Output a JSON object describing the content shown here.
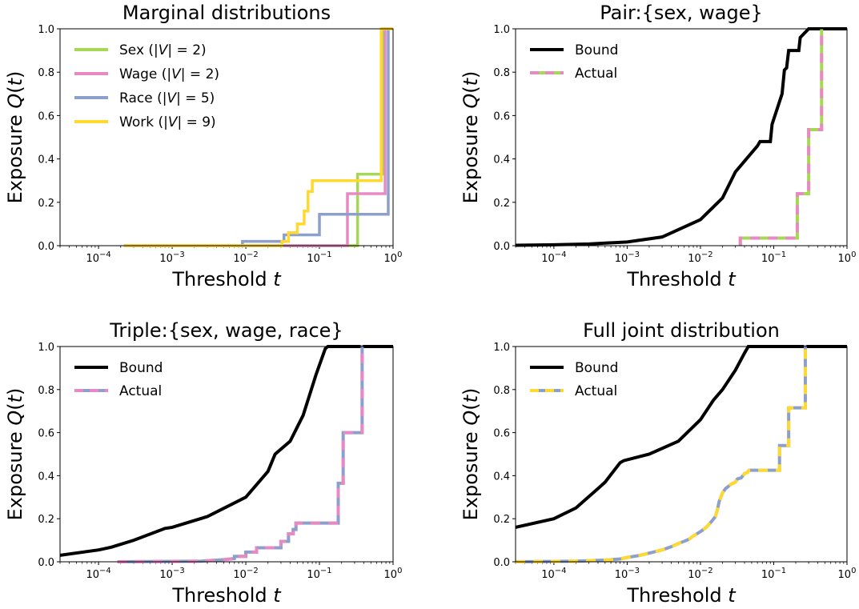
{
  "chart_data": [
    {
      "type": "line",
      "title": "Marginal distributions",
      "xlabel": "Threshold t",
      "ylabel": "Exposure Q(t)",
      "xscale": "log",
      "xlim": [
        3e-05,
        1
      ],
      "ylim": [
        0,
        1
      ],
      "xticks": [
        "10-4",
        "10-3",
        "10-2",
        "10-1",
        "100"
      ],
      "yticks": [
        "0.0",
        "0.2",
        "0.4",
        "0.6",
        "0.8",
        "1.0"
      ],
      "legend_position": "top-left",
      "series": [
        {
          "name": "Sex (|V| = 2)",
          "color": "#a6d854",
          "style": "step",
          "x": [
            0.00022,
            0.33,
            0.33,
            0.72,
            0.72,
            1.0
          ],
          "y": [
            0,
            0,
            0.33,
            0.33,
            1.0,
            1.0
          ]
        },
        {
          "name": "Wage (|V| = 2)",
          "color": "#e78ac3",
          "style": "step",
          "x": [
            0.00022,
            0.24,
            0.24,
            0.78,
            0.78,
            1.0
          ],
          "y": [
            0,
            0,
            0.24,
            0.24,
            1.0,
            1.0
          ]
        },
        {
          "name": "Race (|V| = 5)",
          "color": "#8da0cb",
          "style": "step",
          "x": [
            0.009,
            0.009,
            0.033,
            0.033,
            0.1,
            0.1,
            0.86,
            0.86
          ],
          "y": [
            0,
            0.02,
            0.02,
            0.05,
            0.05,
            0.145,
            0.145,
            1.0
          ]
        },
        {
          "name": "Work (|V| = 9)",
          "color": "#ffd92f",
          "style": "step",
          "x": [
            0.00022,
            0.031,
            0.031,
            0.038,
            0.038,
            0.05,
            0.05,
            0.062,
            0.062,
            0.07,
            0.07,
            0.08,
            0.08,
            0.69,
            0.69,
            1.0
          ],
          "y": [
            0,
            0,
            0.02,
            0.02,
            0.06,
            0.06,
            0.1,
            0.1,
            0.16,
            0.16,
            0.25,
            0.25,
            0.3,
            0.3,
            1.0,
            1.0
          ]
        }
      ]
    },
    {
      "type": "line",
      "title": "Pair:{sex, wage}",
      "xlabel": "Threshold t",
      "ylabel": "Exposure Q(t)",
      "xscale": "log",
      "xlim": [
        3e-05,
        1
      ],
      "ylim": [
        0,
        1
      ],
      "xticks": [
        "10-4",
        "10-3",
        "10-2",
        "10-1",
        "100"
      ],
      "yticks": [
        "0.0",
        "0.2",
        "0.4",
        "0.6",
        "0.8",
        "1.0"
      ],
      "legend_position": "top-left",
      "series": [
        {
          "name": "Bound",
          "color": "#000000",
          "style": "solid",
          "x": [
            3e-05,
            0.0001,
            0.0003,
            0.001,
            0.003,
            0.01,
            0.02,
            0.03,
            0.04,
            0.06,
            0.065,
            0.09,
            0.095,
            0.13,
            0.14,
            0.15,
            0.16,
            0.17,
            0.22,
            0.23,
            0.3,
            1.0
          ],
          "y": [
            0.002,
            0.004,
            0.008,
            0.017,
            0.04,
            0.12,
            0.22,
            0.34,
            0.39,
            0.46,
            0.48,
            0.48,
            0.56,
            0.7,
            0.81,
            0.82,
            0.9,
            0.9,
            0.9,
            0.96,
            1.0,
            1.0
          ]
        },
        {
          "name": "Actual",
          "color": "#e78ac3",
          "color2": "#a6d854",
          "style": "dashed-two-color",
          "x": [
            0.035,
            0.035,
            0.21,
            0.21,
            0.3,
            0.3,
            0.45,
            0.45
          ],
          "y": [
            0,
            0.035,
            0.035,
            0.24,
            0.24,
            0.535,
            0.535,
            1.0
          ]
        }
      ]
    },
    {
      "type": "line",
      "title": "Triple:{sex, wage, race}",
      "xlabel": "Threshold t",
      "ylabel": "Exposure Q(t)",
      "xscale": "log",
      "xlim": [
        3e-05,
        1
      ],
      "ylim": [
        0,
        1
      ],
      "xticks": [
        "10-4",
        "10-3",
        "10-2",
        "10-1",
        "100"
      ],
      "yticks": [
        "0.0",
        "0.2",
        "0.4",
        "0.6",
        "0.8",
        "1.0"
      ],
      "legend_position": "top-left",
      "series": [
        {
          "name": "Bound",
          "color": "#000000",
          "style": "solid",
          "x": [
            3e-05,
            0.0001,
            0.00015,
            0.0003,
            0.0008,
            0.001,
            0.003,
            0.01,
            0.02,
            0.025,
            0.04,
            0.06,
            0.09,
            0.12,
            0.13,
            1.0
          ],
          "y": [
            0.03,
            0.055,
            0.068,
            0.1,
            0.155,
            0.16,
            0.21,
            0.3,
            0.42,
            0.5,
            0.56,
            0.68,
            0.87,
            0.99,
            1.0,
            1.0
          ]
        },
        {
          "name": "Actual",
          "color": "#e78ac3",
          "color2": "#8da0cb",
          "style": "dashed-two-color",
          "x": [
            0.00018,
            0.0025,
            0.005,
            0.007,
            0.007,
            0.01,
            0.01,
            0.014,
            0.014,
            0.03,
            0.03,
            0.038,
            0.038,
            0.044,
            0.044,
            0.048,
            0.048,
            0.18,
            0.18,
            0.21,
            0.21,
            0.38,
            0.38,
            0.39
          ],
          "y": [
            0,
            0.003,
            0.01,
            0.015,
            0.025,
            0.025,
            0.045,
            0.045,
            0.065,
            0.065,
            0.095,
            0.095,
            0.13,
            0.13,
            0.15,
            0.15,
            0.18,
            0.18,
            0.365,
            0.365,
            0.6,
            0.6,
            1.0,
            1.0
          ]
        }
      ]
    },
    {
      "type": "line",
      "title": "Full joint distribution",
      "xlabel": "Threshold t",
      "ylabel": "Exposure Q(t)",
      "xscale": "log",
      "xlim": [
        3e-05,
        1
      ],
      "ylim": [
        0,
        1
      ],
      "xticks": [
        "10-4",
        "10-3",
        "10-2",
        "10-1",
        "100"
      ],
      "yticks": [
        "0.0",
        "0.2",
        "0.4",
        "0.6",
        "0.8",
        "1.0"
      ],
      "legend_position": "top-left",
      "series": [
        {
          "name": "Bound",
          "color": "#000000",
          "style": "solid",
          "x": [
            3e-05,
            0.0001,
            0.0002,
            0.0004,
            0.0005,
            0.0008,
            0.0009,
            0.002,
            0.005,
            0.01,
            0.015,
            0.02,
            0.03,
            0.04,
            0.045,
            1.0
          ],
          "y": [
            0.16,
            0.2,
            0.25,
            0.34,
            0.37,
            0.46,
            0.47,
            0.5,
            0.56,
            0.66,
            0.75,
            0.8,
            0.89,
            0.97,
            1.0,
            1.0
          ]
        },
        {
          "name": "Actual",
          "color": "#ffd92f",
          "color2": "#8da0cb",
          "style": "dashed-two-color",
          "x": [
            3e-05,
            0.0002,
            0.0005,
            0.0008,
            0.001,
            0.0015,
            0.002,
            0.003,
            0.004,
            0.005,
            0.006,
            0.007,
            0.008,
            0.01,
            0.012,
            0.014,
            0.016,
            0.017,
            0.018,
            0.019,
            0.02,
            0.022,
            0.024,
            0.026,
            0.03,
            0.032,
            0.036,
            0.04,
            0.044,
            0.046,
            0.1,
            0.12,
            0.12,
            0.16,
            0.16,
            0.27,
            0.27,
            0.28
          ],
          "y": [
            0,
            0.003,
            0.008,
            0.013,
            0.02,
            0.03,
            0.04,
            0.055,
            0.07,
            0.085,
            0.095,
            0.105,
            0.12,
            0.14,
            0.16,
            0.185,
            0.21,
            0.24,
            0.28,
            0.3,
            0.32,
            0.34,
            0.35,
            0.36,
            0.37,
            0.385,
            0.39,
            0.41,
            0.415,
            0.425,
            0.425,
            0.425,
            0.54,
            0.54,
            0.715,
            0.715,
            1.0,
            1.0
          ]
        }
      ]
    }
  ]
}
